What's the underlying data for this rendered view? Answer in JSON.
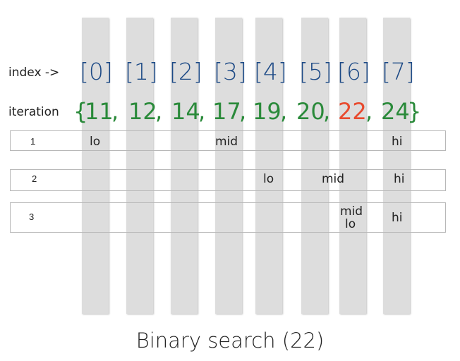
{
  "labels": {
    "index": "index ->",
    "iteration": "iteration"
  },
  "indices": [
    "[0]",
    "[1]",
    "[2]",
    "[3]",
    "[4]",
    "[5]",
    "[6]",
    "[7]"
  ],
  "array": {
    "open": "{",
    "close": "}",
    "separator": ",",
    "values": [
      "11",
      "12",
      "14",
      "17",
      "19",
      "20",
      "22",
      "24"
    ],
    "target_index": 6
  },
  "iterations": [
    {
      "number": "1",
      "lo": "lo",
      "mid": "mid",
      "hi": "hi"
    },
    {
      "number": "2",
      "lo": "lo",
      "mid": "mid",
      "hi": "hi"
    },
    {
      "number": "3",
      "lo": "lo",
      "mid": "mid",
      "hi": "hi"
    }
  ],
  "caption": "Binary search (22)",
  "colors": {
    "index": "#1d4a86",
    "value": "#2a8a3a",
    "target": "#e84a2e",
    "column": "#dddddd"
  }
}
